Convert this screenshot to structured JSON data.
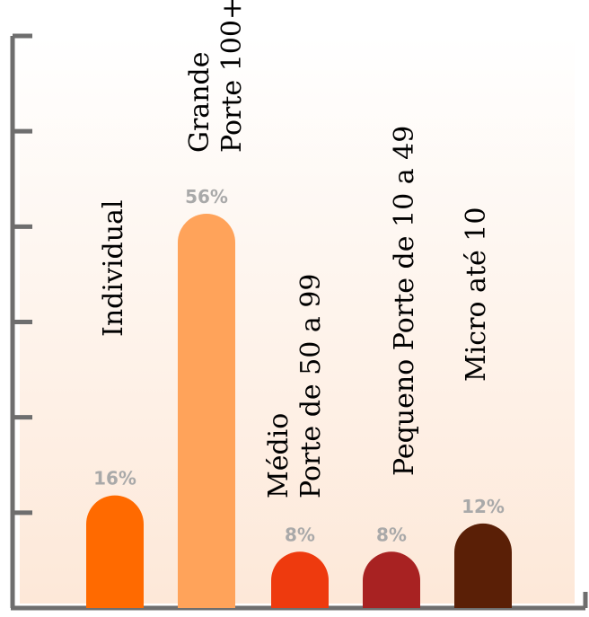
{
  "chart_data": {
    "type": "bar",
    "title": "",
    "xlabel": "",
    "ylabel": "",
    "categories": [
      "Individual",
      "Grande Porte 100+",
      "Médio Porte de 50 a 99",
      "Pequeno Porte de 10 a 49",
      "Micro até 10"
    ],
    "label_lines": [
      [
        "Individual"
      ],
      [
        "Grande",
        "Porte 100+"
      ],
      [
        "Médio",
        "Porte de 50 a 99"
      ],
      [
        "Pequeno Porte de 10 a 49"
      ],
      [
        "Micro até 10"
      ]
    ],
    "values": [
      16,
      56,
      8,
      8,
      12
    ],
    "value_labels": [
      "16%",
      "56%",
      "8%",
      "8%",
      "12%"
    ],
    "colors": [
      "#ff6a00",
      "#ffa35a",
      "#ee3a0e",
      "#a82222",
      "#5a1f06"
    ],
    "ylim": [
      0,
      60
    ],
    "grid": false,
    "axis_color": "#6e6e6e",
    "background_gradient": [
      "#ffffff",
      "#fde8d8"
    ]
  }
}
